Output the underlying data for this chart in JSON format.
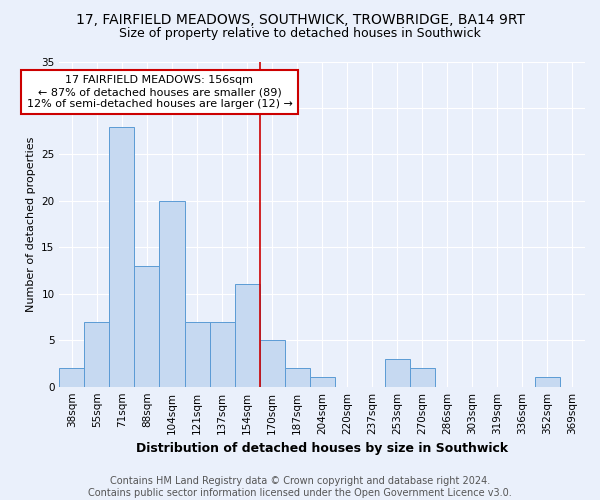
{
  "title": "17, FAIRFIELD MEADOWS, SOUTHWICK, TROWBRIDGE, BA14 9RT",
  "subtitle": "Size of property relative to detached houses in Southwick",
  "xlabel": "Distribution of detached houses by size in Southwick",
  "ylabel": "Number of detached properties",
  "bin_labels": [
    "38sqm",
    "55sqm",
    "71sqm",
    "88sqm",
    "104sqm",
    "121sqm",
    "137sqm",
    "154sqm",
    "170sqm",
    "187sqm",
    "204sqm",
    "220sqm",
    "237sqm",
    "253sqm",
    "270sqm",
    "286sqm",
    "303sqm",
    "319sqm",
    "336sqm",
    "352sqm",
    "369sqm"
  ],
  "bar_heights": [
    2,
    7,
    28,
    13,
    20,
    7,
    7,
    11,
    5,
    2,
    1,
    0,
    0,
    3,
    2,
    0,
    0,
    0,
    0,
    1,
    0
  ],
  "bar_color": "#c6d9f1",
  "bar_edge_color": "#5b9bd5",
  "vline_index": 7,
  "vline_color": "#cc0000",
  "annotation_text": "17 FAIRFIELD MEADOWS: 156sqm\n← 87% of detached houses are smaller (89)\n12% of semi-detached houses are larger (12) →",
  "annotation_box_color": "#ffffff",
  "annotation_border_color": "#cc0000",
  "ylim": [
    0,
    35
  ],
  "yticks": [
    0,
    5,
    10,
    15,
    20,
    25,
    30,
    35
  ],
  "footer_text": "Contains HM Land Registry data © Crown copyright and database right 2024.\nContains public sector information licensed under the Open Government Licence v3.0.",
  "background_color": "#eaf0fb",
  "grid_color": "#ffffff",
  "title_fontsize": 10,
  "subtitle_fontsize": 9,
  "xlabel_fontsize": 9,
  "ylabel_fontsize": 8,
  "tick_fontsize": 7.5,
  "annotation_fontsize": 8,
  "footer_fontsize": 7
}
